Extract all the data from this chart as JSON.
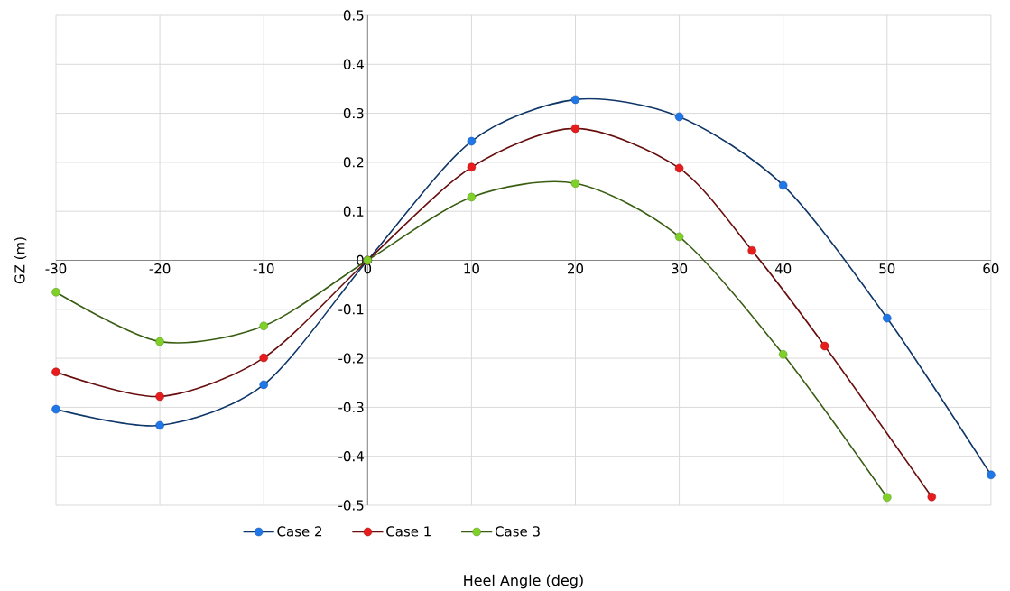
{
  "chart_data": {
    "type": "line",
    "xlabel": "Heel Angle (deg)",
    "ylabel": "GZ (m)",
    "xlim": [
      -30,
      60
    ],
    "ylim": [
      -0.5,
      0.5
    ],
    "xticks": [
      -30,
      -20,
      -10,
      0,
      10,
      20,
      30,
      40,
      50,
      60
    ],
    "yticks": [
      -0.5,
      -0.4,
      -0.3,
      -0.2,
      -0.1,
      0,
      0.1,
      0.2,
      0.3,
      0.4,
      0.5
    ],
    "grid": true,
    "legend": "bottom",
    "marker": "circle",
    "line_style": "solid",
    "series": [
      {
        "name": "Case 2",
        "color": "#1f77e8",
        "x": [
          -30,
          -20,
          -10,
          0,
          10,
          20,
          30,
          40,
          50,
          60
        ],
        "values": [
          -0.304,
          -0.337,
          -0.254,
          0,
          0.243,
          0.328,
          0.293,
          0.153,
          -0.118,
          -0.438
        ]
      },
      {
        "name": "Case 1",
        "color": "#e81c1c",
        "x": [
          -30,
          -20,
          -10,
          0,
          10,
          20,
          30,
          37,
          44,
          54.3
        ],
        "values": [
          -0.228,
          -0.278,
          -0.199,
          0,
          0.19,
          0.269,
          0.188,
          0.02,
          -0.175,
          -0.483
        ]
      },
      {
        "name": "Case 3",
        "color": "#7fd12a",
        "x": [
          -30,
          -20,
          -10,
          0,
          10,
          20,
          30,
          40,
          50
        ],
        "values": [
          -0.065,
          -0.166,
          -0.134,
          0,
          0.129,
          0.157,
          0.048,
          -0.192,
          -0.484
        ]
      }
    ]
  }
}
